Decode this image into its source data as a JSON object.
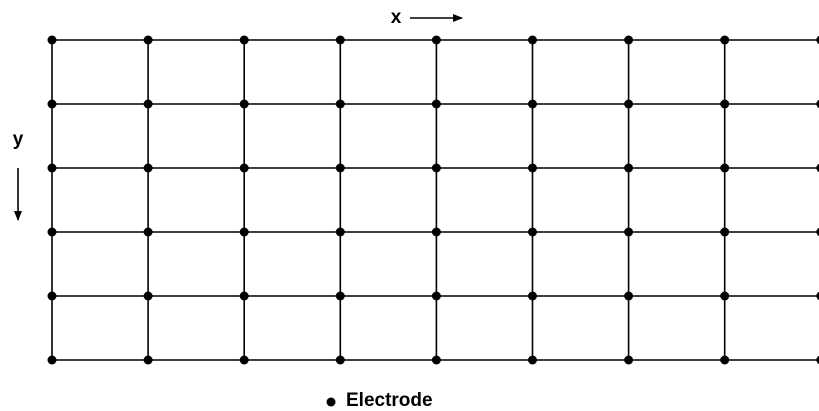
{
  "diagram": {
    "x_axis_label": "x",
    "y_axis_label": "y",
    "legend": {
      "label": "Electrode"
    }
  }
}
